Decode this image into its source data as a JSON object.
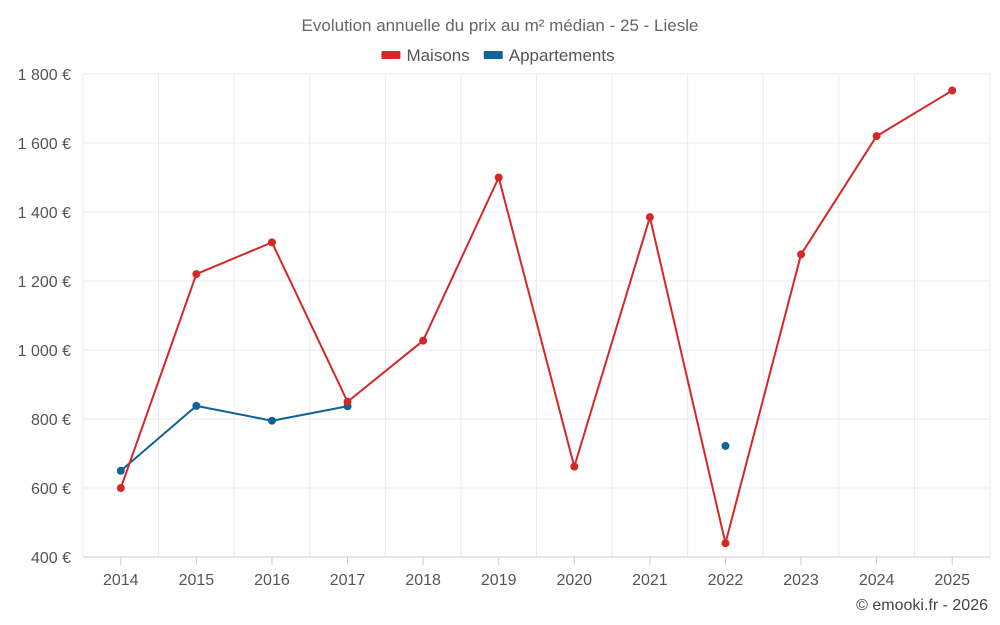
{
  "chart_data": {
    "type": "line",
    "title": "Evolution annuelle du prix au m² médian - 25 - Liesle",
    "categories": [
      "2014",
      "2015",
      "2016",
      "2017",
      "2018",
      "2019",
      "2020",
      "2021",
      "2022",
      "2023",
      "2024",
      "2025"
    ],
    "ylim": [
      400,
      1800
    ],
    "yticks": [
      400,
      600,
      800,
      1000,
      1200,
      1400,
      1600,
      1800
    ],
    "ytick_labels": [
      "400 €",
      "600 €",
      "800 €",
      "1 000 €",
      "1 200 €",
      "1 400 €",
      "1 600 €",
      "1 800 €"
    ],
    "grid": true,
    "legend_position": "top-center",
    "series": [
      {
        "name": "Maisons",
        "color": "#d62728",
        "values": [
          600,
          1220,
          1312,
          850,
          1027,
          1500,
          662,
          1385,
          440,
          1277,
          1620,
          1752
        ]
      },
      {
        "name": "Appartements",
        "color": "#0f6397",
        "values": [
          650,
          838,
          795,
          837,
          null,
          null,
          null,
          null,
          722,
          null,
          null,
          null
        ]
      }
    ],
    "credit": "© emooki.fr - 2026"
  }
}
